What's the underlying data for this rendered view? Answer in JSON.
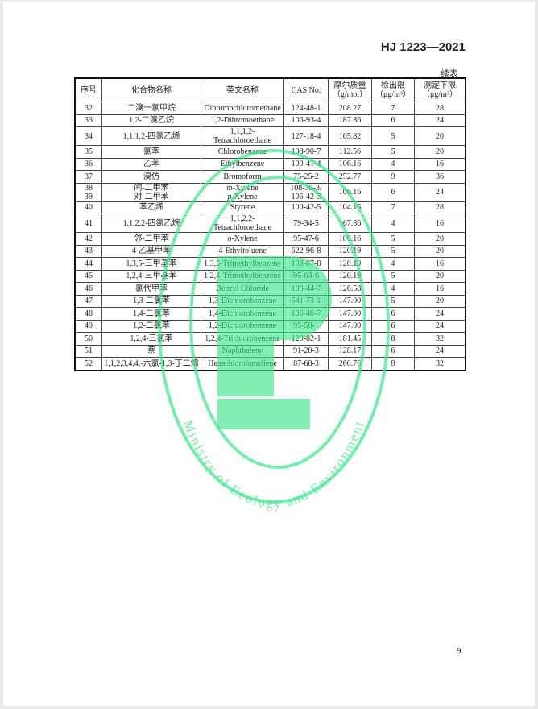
{
  "header": {
    "standard_number": "HJ 1223—2021",
    "continued_label": "续表"
  },
  "table": {
    "columns": [
      "序号",
      "化合物名称",
      "英文名称",
      "CAS No.",
      "摩尔质量（g/mol）",
      "检出限（μg/m³）",
      "测定下限（μg/m³）"
    ],
    "rows": [
      {
        "no": "32",
        "cn": "二溴一氯甲烷",
        "en": "Dibromochloromethane",
        "cas": "124-48-1",
        "mw": "208.27",
        "dl": "7",
        "ql": "28"
      },
      {
        "no": "33",
        "cn": "1,2-二溴乙烷",
        "en": "1,2-Dibromoethane",
        "cas": "106-93-4",
        "mw": "187.86",
        "dl": "6",
        "ql": "24"
      },
      {
        "no": "34",
        "cn": "1,1,1,2-四氯乙烯",
        "en": "1,1,1,2-\nTetrachloroethane",
        "cas": "127-18-4",
        "mw": "165.82",
        "dl": "5",
        "ql": "20",
        "double": true
      },
      {
        "no": "35",
        "cn": "氯苯",
        "en": "Chlorobenzene",
        "cas": "108-90-7",
        "mw": "112.56",
        "dl": "5",
        "ql": "20"
      },
      {
        "no": "36",
        "cn": "乙苯",
        "en": "Ethylbenzene",
        "cas": "100-41-4",
        "mw": "106.16",
        "dl": "4",
        "ql": "16"
      },
      {
        "no": "37",
        "cn": "溴仿",
        "en": "Bromoform",
        "cas": "75-25-2",
        "mw": "252.77",
        "dl": "9",
        "ql": "36"
      },
      {
        "no": "38\n39",
        "cn": "间-二甲苯\n对-二甲苯",
        "en": "m-Xylene\np-Xylene",
        "cas": "108-38-3/\n106-42-3",
        "mw": "106.16",
        "dl": "6",
        "ql": "24",
        "double": true
      },
      {
        "no": "40",
        "cn": "苯乙烯",
        "en": "Styrene",
        "cas": "100-42-5",
        "mw": "104.15",
        "dl": "7",
        "ql": "28"
      },
      {
        "no": "41",
        "cn": "1,1,2,2-四氯乙烷",
        "en": "1,1,2,2-\nTetrachloroethane",
        "cas": "79-34-5",
        "mw": "167.86",
        "dl": "4",
        "ql": "16",
        "double": true
      },
      {
        "no": "42",
        "cn": "邻-二甲苯",
        "en": "o-Xylene",
        "cas": "95-47-6",
        "mw": "106.16",
        "dl": "5",
        "ql": "20"
      },
      {
        "no": "43",
        "cn": "4-乙基甲苯",
        "en": "4-Ethyltoluene",
        "cas": "622-96-8",
        "mw": "120.19",
        "dl": "5",
        "ql": "20"
      },
      {
        "no": "44",
        "cn": "1,3,5-三甲基苯",
        "en": "1,3,5-Trimethylbenzene",
        "cas": "108-67-8",
        "mw": "120.19",
        "dl": "4",
        "ql": "16"
      },
      {
        "no": "45",
        "cn": "1,2,4-三甲基苯",
        "en": "1,2,4-Trimethylbenzene",
        "cas": "95-63-6",
        "mw": "120.19",
        "dl": "5",
        "ql": "20"
      },
      {
        "no": "46",
        "cn": "氯代甲苯",
        "en": "Benzyl Chloride",
        "cas": "100-44-7",
        "mw": "126.58",
        "dl": "4",
        "ql": "16"
      },
      {
        "no": "47",
        "cn": "1,3-二氯苯",
        "en": "1,3-Dichlorobenzene",
        "cas": "541-73-1",
        "mw": "147.00",
        "dl": "5",
        "ql": "20"
      },
      {
        "no": "48",
        "cn": "1,4-二氯苯",
        "en": "1,4-Dichlorobenzene",
        "cas": "106-46-7",
        "mw": "147.00",
        "dl": "6",
        "ql": "24"
      },
      {
        "no": "49",
        "cn": "1,2-二氯苯",
        "en": "1,2-Dichlorobenzene",
        "cas": "95-50-1",
        "mw": "147.00",
        "dl": "6",
        "ql": "24"
      },
      {
        "no": "50",
        "cn": "1,2,4-三氯苯",
        "en": "1,2,4-Trichlorobenzene",
        "cas": "120-82-1",
        "mw": "181.45",
        "dl": "8",
        "ql": "32"
      },
      {
        "no": "51",
        "cn": "萘",
        "en": "Naphthalene",
        "cas": "91-20-3",
        "mw": "128.17",
        "dl": "6",
        "ql": "24"
      },
      {
        "no": "52",
        "cn": "1,1,2,3,4,4,-六氯-1,3-丁二烯",
        "en": "Hexachlorobutadiene",
        "cas": "87-68-3",
        "mw": "260.76",
        "dl": "8",
        "ql": "32"
      }
    ]
  },
  "watermark": {
    "text": "Ministry of Ecology and Environment",
    "color": "#3ee68a"
  },
  "footer": {
    "page_number": "9"
  }
}
